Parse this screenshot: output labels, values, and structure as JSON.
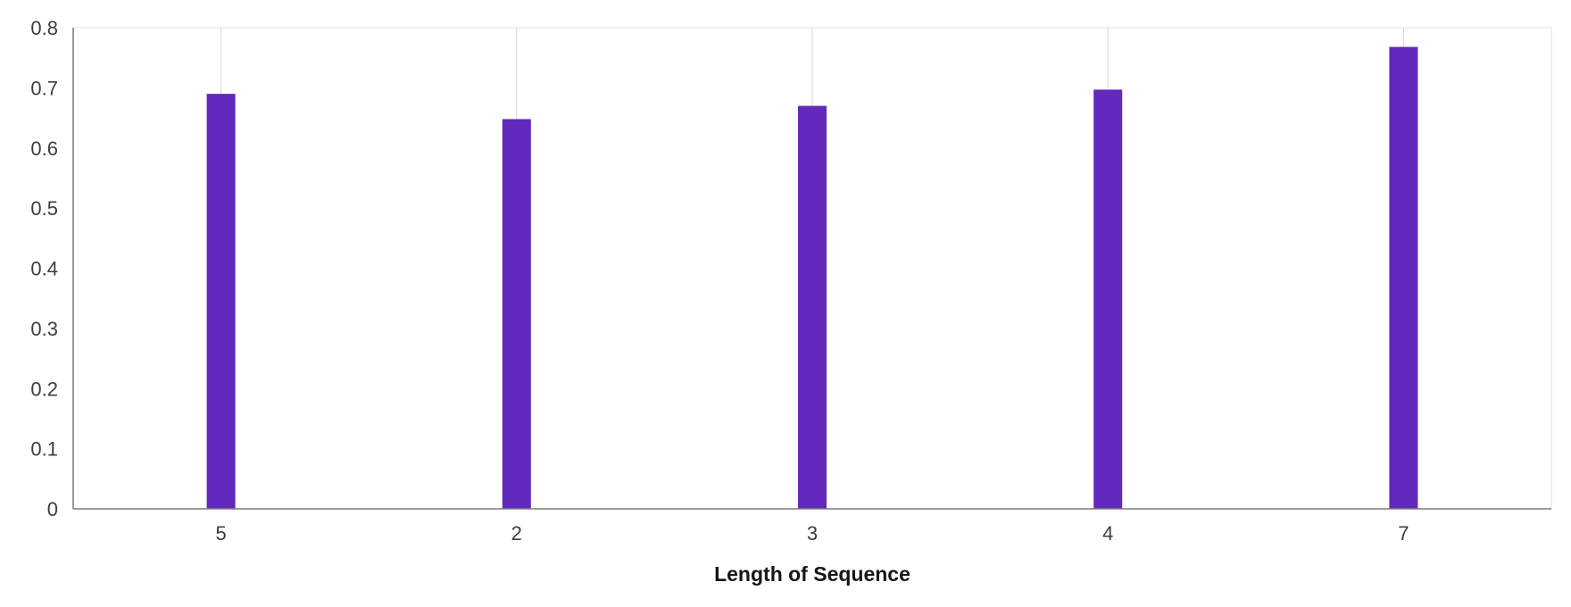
{
  "chart_data": {
    "type": "bar",
    "categories": [
      "5",
      "2",
      "3",
      "4",
      "7"
    ],
    "values": [
      0.69,
      0.648,
      0.67,
      0.697,
      0.768
    ],
    "title": "",
    "xlabel": "Length of Sequence",
    "ylabel": "",
    "ylim": [
      0,
      0.8
    ],
    "yticks": [
      "0",
      "0.1",
      "0.2",
      "0.3",
      "0.4",
      "0.5",
      "0.6",
      "0.7",
      "0.8"
    ],
    "grid": "vertical",
    "bar_color": "#6229bd",
    "grid_color": "#d6d6d6",
    "axis_color": "#7a7a7a"
  }
}
